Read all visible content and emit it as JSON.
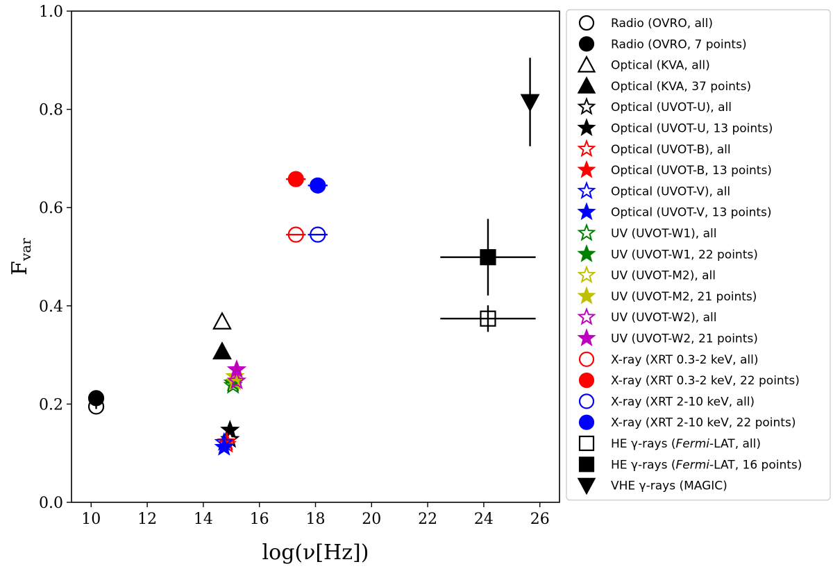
{
  "chart_data": {
    "type": "scatter",
    "xlabel": "log(ν[Hz])",
    "ylabel": "F",
    "ylabel_sub": "var",
    "xlim": [
      9.3,
      26.7
    ],
    "ylim": [
      0.0,
      1.0
    ],
    "xticks": [
      10,
      12,
      14,
      16,
      18,
      20,
      22,
      24,
      26
    ],
    "yticks": [
      0.0,
      0.2,
      0.4,
      0.6,
      0.8,
      1.0
    ],
    "xtick_labels": [
      "10",
      "12",
      "14",
      "16",
      "18",
      "20",
      "22",
      "24",
      "26"
    ],
    "ytick_labels": [
      "0.0",
      "0.2",
      "0.4",
      "0.6",
      "0.8",
      "1.0"
    ],
    "legend_position": "outside-right",
    "series": [
      {
        "name": "Radio (OVRO, all)",
        "marker": "circle",
        "fill": "none",
        "color": "#000000",
        "points": [
          {
            "x": 10.18,
            "y": 0.195,
            "yerr": 0.005
          }
        ]
      },
      {
        "name": "Radio (OVRO, 7 points)",
        "marker": "circle",
        "fill": "full",
        "color": "#000000",
        "points": [
          {
            "x": 10.18,
            "y": 0.212,
            "yerr": 0.005
          }
        ]
      },
      {
        "name": "Optical (KVA, all)",
        "marker": "triangle-up",
        "fill": "none",
        "color": "#000000",
        "points": [
          {
            "x": 14.67,
            "y": 0.368
          }
        ]
      },
      {
        "name": "Optical (KVA, 37 points)",
        "marker": "triangle-up",
        "fill": "full",
        "color": "#000000",
        "points": [
          {
            "x": 14.67,
            "y": 0.307
          }
        ]
      },
      {
        "name": "Optical (UVOT-U), all",
        "marker": "star",
        "fill": "none",
        "color": "#000000",
        "points": [
          {
            "x": 14.95,
            "y": 0.128
          }
        ]
      },
      {
        "name": "Optical (UVOT-U, 13 points)",
        "marker": "star",
        "fill": "full",
        "color": "#000000",
        "points": [
          {
            "x": 14.95,
            "y": 0.147
          }
        ]
      },
      {
        "name": "Optical (UVOT-B), all",
        "marker": "star",
        "fill": "none",
        "color": "#ff0000",
        "points": [
          {
            "x": 14.84,
            "y": 0.118
          }
        ]
      },
      {
        "name": "Optical (UVOT-B, 13 points)",
        "marker": "star",
        "fill": "full",
        "color": "#ff0000",
        "points": [
          {
            "x": 14.84,
            "y": 0.123
          }
        ]
      },
      {
        "name": "Optical (UVOT-V), all",
        "marker": "star",
        "fill": "none",
        "color": "#0000ff",
        "points": [
          {
            "x": 14.74,
            "y": 0.122
          }
        ]
      },
      {
        "name": "Optical (UVOT-V, 13 points)",
        "marker": "star",
        "fill": "full",
        "color": "#0000ff",
        "points": [
          {
            "x": 14.74,
            "y": 0.112
          }
        ]
      },
      {
        "name": "UV (UVOT-W1), all",
        "marker": "star",
        "fill": "none",
        "color": "#008000",
        "points": [
          {
            "x": 15.06,
            "y": 0.238
          }
        ]
      },
      {
        "name": "UV (UVOT-W1, 22 points)",
        "marker": "star",
        "fill": "full",
        "color": "#008000",
        "points": [
          {
            "x": 15.06,
            "y": 0.243
          }
        ]
      },
      {
        "name": "UV (UVOT-M2), all",
        "marker": "star",
        "fill": "none",
        "color": "#bfbf00",
        "points": [
          {
            "x": 15.13,
            "y": 0.245
          }
        ]
      },
      {
        "name": "UV (UVOT-M2, 21 points)",
        "marker": "star",
        "fill": "full",
        "color": "#bfbf00",
        "points": [
          {
            "x": 15.13,
            "y": 0.256
          }
        ]
      },
      {
        "name": "UV (UVOT-W2), all",
        "marker": "star",
        "fill": "none",
        "color": "#bf00bf",
        "points": [
          {
            "x": 15.19,
            "y": 0.247
          }
        ]
      },
      {
        "name": "UV (UVOT-W2, 21 points)",
        "marker": "star",
        "fill": "full",
        "color": "#bf00bf",
        "points": [
          {
            "x": 15.19,
            "y": 0.27
          }
        ]
      },
      {
        "name": "X-ray (XRT 0.3-2 keV, all)",
        "marker": "circle",
        "fill": "none",
        "color": "#ff0000",
        "points": [
          {
            "x": 17.3,
            "y": 0.545,
            "xerr": 0.35
          }
        ]
      },
      {
        "name": "X-ray (XRT 0.3-2 keV, 22 points)",
        "marker": "circle",
        "fill": "full",
        "color": "#ff0000",
        "points": [
          {
            "x": 17.3,
            "y": 0.658,
            "xerr": 0.35
          }
        ]
      },
      {
        "name": "X-ray (XRT 2-10 keV, all)",
        "marker": "circle",
        "fill": "none",
        "color": "#0000ff",
        "points": [
          {
            "x": 18.08,
            "y": 0.545,
            "xerr": 0.35
          }
        ]
      },
      {
        "name": "X-ray (XRT 2-10 keV, 22 points)",
        "marker": "circle",
        "fill": "full",
        "color": "#0000ff",
        "points": [
          {
            "x": 18.08,
            "y": 0.645,
            "xerr": 0.35
          }
        ]
      },
      {
        "name": "HE γ-rays (Fermi-LAT, all)",
        "marker": "square",
        "fill": "none",
        "color": "#000000",
        "points": [
          {
            "x": 24.15,
            "y": 0.374,
            "xerr": 1.7,
            "yerr": 0.027
          }
        ]
      },
      {
        "name": "HE γ-rays (Fermi-LAT, 16 points)",
        "marker": "square",
        "fill": "full",
        "color": "#000000",
        "points": [
          {
            "x": 24.15,
            "y": 0.499,
            "xerr": 1.7,
            "yerr": 0.078
          }
        ]
      },
      {
        "name": "VHE γ-rays (MAGIC)",
        "marker": "triangle-down",
        "fill": "full",
        "color": "#000000",
        "points": [
          {
            "x": 25.65,
            "y": 0.815,
            "yerr": 0.09
          }
        ]
      }
    ]
  }
}
